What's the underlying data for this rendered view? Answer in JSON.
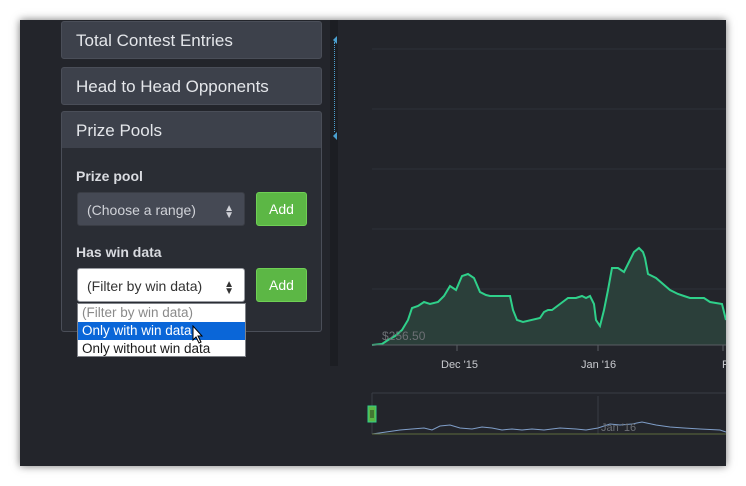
{
  "sidebar": {
    "panels": [
      {
        "label": "Total Contest Entries"
      },
      {
        "label": "Head to Head Opponents"
      },
      {
        "label": "Prize Pools"
      }
    ],
    "prize_pool": {
      "label": "Prize pool",
      "select_value": "(Choose a range)",
      "add_label": "Add"
    },
    "win_data": {
      "label": "Has win data",
      "select_value": "(Filter by win data)",
      "add_label": "Add",
      "options": [
        "(Filter by win data)",
        "Only with win data",
        "Only without win data"
      ],
      "highlighted_option": "Only with win data"
    }
  },
  "chart_data": {
    "type": "area",
    "x_ticks": [
      "Dec '15",
      "Jan '16",
      "F"
    ],
    "min_label": "$256.50",
    "navigator_label": "Jan '16",
    "colors": {
      "line": "#2fd08a",
      "fill": "#2b3f3a",
      "navigator": "#7f9ec8"
    }
  }
}
